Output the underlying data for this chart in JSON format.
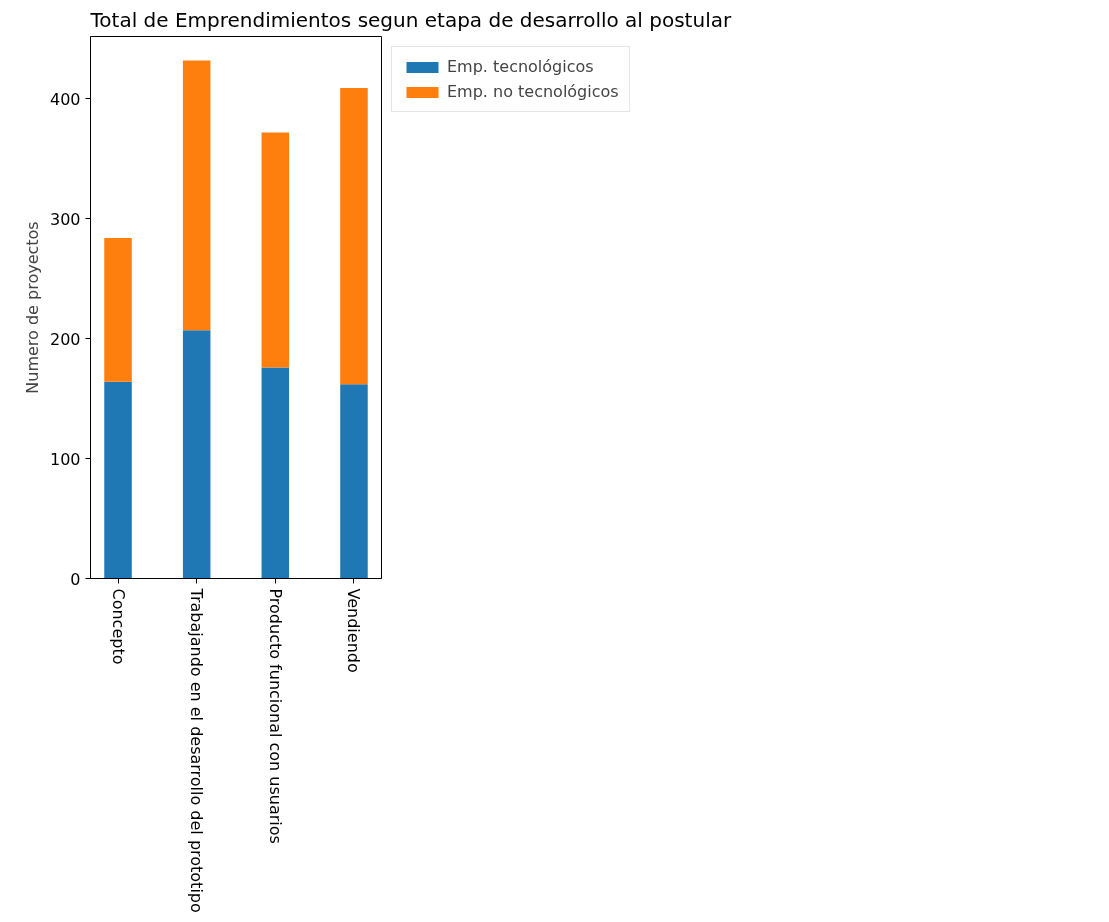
{
  "chart_data": {
    "type": "bar",
    "title": "Total de Emprendimientos segun etapa de desarrollo al postular",
    "ylabel": "Numero de proyectos",
    "categories": [
      "Concepto",
      "Trabajando en el desarrollo del prototipo",
      "Producto funcional con usuarios",
      "Vendiendo"
    ],
    "stacked": true,
    "series": [
      {
        "name": "Emp. tecnológicos",
        "color": "#1f77b4",
        "values": [
          164,
          207,
          176,
          162
        ]
      },
      {
        "name": "Emp. no tecnológicos",
        "color": "#ff7f0e",
        "values": [
          120,
          225,
          196,
          247
        ]
      }
    ],
    "ylim": [
      0,
      452
    ],
    "yticks": [
      0,
      100,
      200,
      300,
      400
    ],
    "grid": false,
    "legend": "right"
  }
}
